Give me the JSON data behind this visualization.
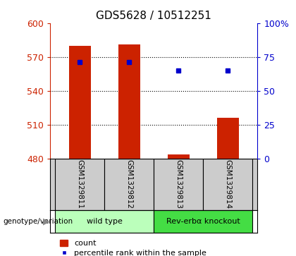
{
  "title": "GDS5628 / 10512251",
  "samples": [
    "GSM1329811",
    "GSM1329812",
    "GSM1329813",
    "GSM1329814"
  ],
  "counts": [
    580,
    581,
    484,
    516
  ],
  "count_base": 480,
  "percentile_ranks": [
    71,
    71,
    65,
    65
  ],
  "left_ylim": [
    480,
    600
  ],
  "right_ylim": [
    0,
    100
  ],
  "left_yticks": [
    480,
    510,
    540,
    570,
    600
  ],
  "right_yticks": [
    0,
    25,
    50,
    75,
    100
  ],
  "left_ytick_labels": [
    "480",
    "510",
    "540",
    "570",
    "600"
  ],
  "right_ytick_labels": [
    "0",
    "25",
    "50",
    "75",
    "100%"
  ],
  "bar_color": "#cc2200",
  "dot_color": "#0000cc",
  "groups": [
    {
      "label": "wild type",
      "samples": [
        0,
        1
      ],
      "color": "#bbffbb"
    },
    {
      "label": "Rev-erbα knockout",
      "samples": [
        2,
        3
      ],
      "color": "#44dd44"
    }
  ],
  "genotype_label": "genotype/variation",
  "legend_count_label": "count",
  "legend_percentile_label": "percentile rank within the sample",
  "bar_width": 0.45,
  "sample_bg_color": "#cccccc",
  "grid_linestyle": ":",
  "grid_linewidth": 0.8,
  "tick_fontsize": 9,
  "title_fontsize": 11
}
